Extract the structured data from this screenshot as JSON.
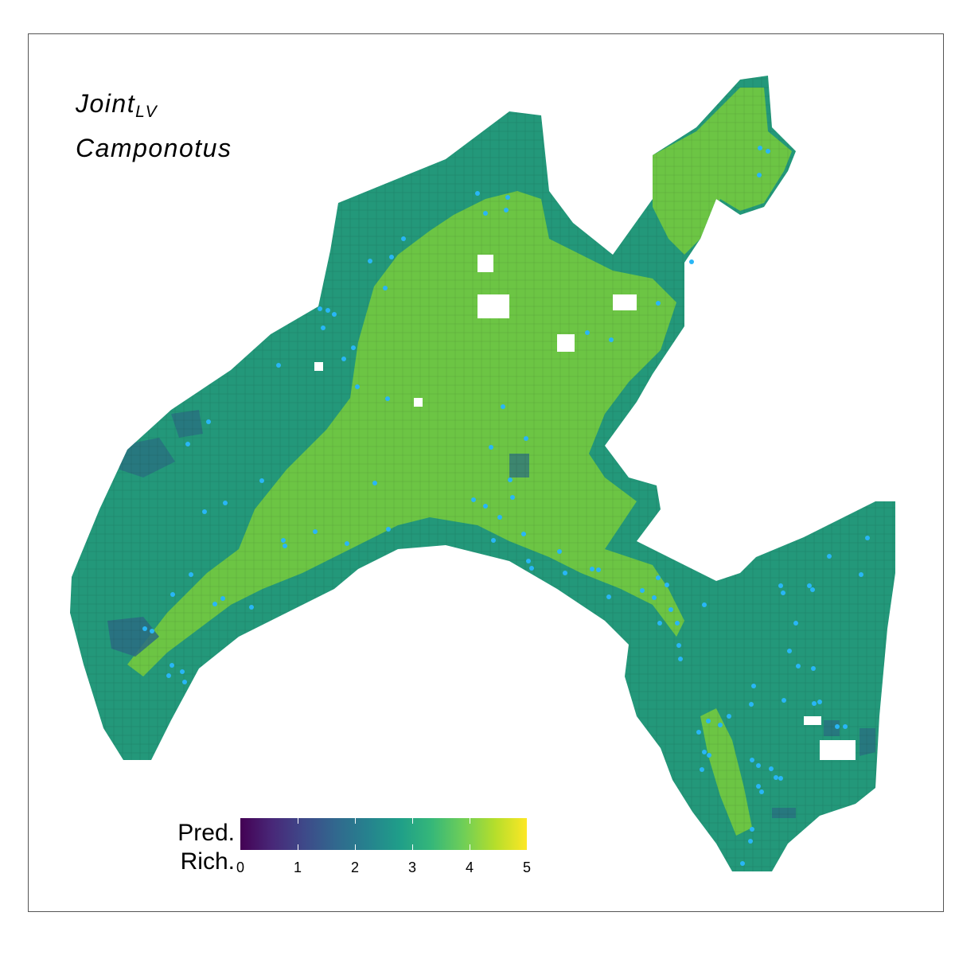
{
  "title": {
    "main": "Joint",
    "subscript": "LV",
    "taxon": "Camponotus"
  },
  "legend": {
    "title_line1": "Pred.",
    "title_line2": "Rich.",
    "min": 0,
    "max": 5,
    "ticks": [
      "0",
      "1",
      "2",
      "3",
      "4",
      "5"
    ],
    "palette": "viridis"
  },
  "colors": {
    "low_richness": "#440154",
    "richness_2": "#31688e",
    "richness_3": "#21908c",
    "richness_4": "#6ece58",
    "high_richness": "#fde725",
    "observation_point": "#29b6f6",
    "frame_border": "#555555"
  },
  "map_layers": [
    {
      "name": "predicted-richness-grid",
      "type": "raster",
      "dominant_values": [
        3,
        4
      ]
    },
    {
      "name": "observation-points",
      "type": "points",
      "marker": "circle"
    }
  ]
}
